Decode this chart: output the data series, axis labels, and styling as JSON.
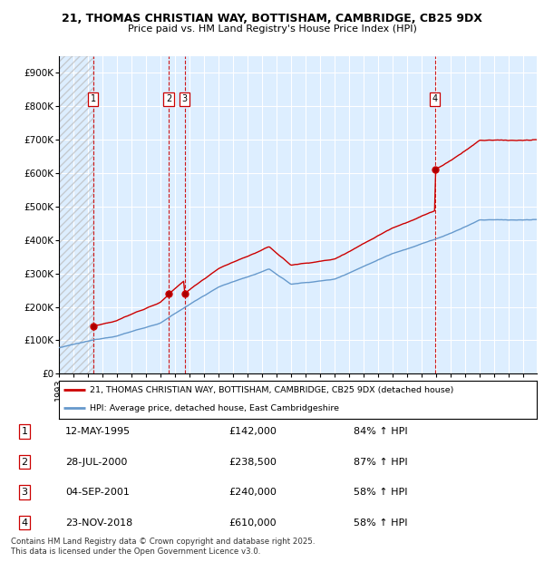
{
  "title_line1": "21, THOMAS CHRISTIAN WAY, BOTTISHAM, CAMBRIDGE, CB25 9DX",
  "title_line2": "Price paid vs. HM Land Registry's House Price Index (HPI)",
  "ylim": [
    0,
    950000
  ],
  "yticks": [
    0,
    100000,
    200000,
    300000,
    400000,
    500000,
    600000,
    700000,
    800000,
    900000
  ],
  "ytick_labels": [
    "£0",
    "£100K",
    "£200K",
    "£300K",
    "£400K",
    "£500K",
    "£600K",
    "£700K",
    "£800K",
    "£900K"
  ],
  "xlim_start": 1993.0,
  "xlim_end": 2025.9,
  "sale_dates": [
    1995.36,
    2000.57,
    2001.67,
    2018.9
  ],
  "sale_prices": [
    142000,
    238500,
    240000,
    610000
  ],
  "sale_labels": [
    "1",
    "2",
    "3",
    "4"
  ],
  "sale_color": "#cc0000",
  "hpi_color": "#6699cc",
  "legend_sale": "21, THOMAS CHRISTIAN WAY, BOTTISHAM, CAMBRIDGE, CB25 9DX (detached house)",
  "legend_hpi": "HPI: Average price, detached house, East Cambridgeshire",
  "table_entries": [
    {
      "num": "1",
      "date": "12-MAY-1995",
      "price": "£142,000",
      "hpi": "84% ↑ HPI"
    },
    {
      "num": "2",
      "date": "28-JUL-2000",
      "price": "£238,500",
      "hpi": "87% ↑ HPI"
    },
    {
      "num": "3",
      "date": "04-SEP-2001",
      "price": "£240,000",
      "hpi": "58% ↑ HPI"
    },
    {
      "num": "4",
      "date": "23-NOV-2018",
      "price": "£610,000",
      "hpi": "58% ↑ HPI"
    }
  ],
  "footnote": "Contains HM Land Registry data © Crown copyright and database right 2025.\nThis data is licensed under the Open Government Licence v3.0.",
  "background_color": "#ffffff",
  "plot_bg_color": "#ddeeff",
  "grid_color": "#ffffff",
  "hatch_color": "#bbbbbb"
}
